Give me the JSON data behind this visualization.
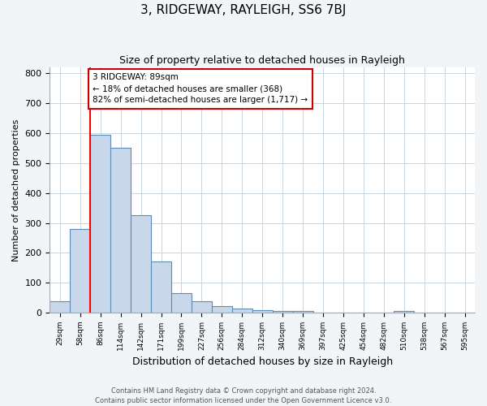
{
  "title": "3, RIDGEWAY, RAYLEIGH, SS6 7BJ",
  "subtitle": "Size of property relative to detached houses in Rayleigh",
  "xlabel": "Distribution of detached houses by size in Rayleigh",
  "ylabel": "Number of detached properties",
  "bin_labels": [
    "29sqm",
    "58sqm",
    "86sqm",
    "114sqm",
    "142sqm",
    "171sqm",
    "199sqm",
    "227sqm",
    "256sqm",
    "284sqm",
    "312sqm",
    "340sqm",
    "369sqm",
    "397sqm",
    "425sqm",
    "454sqm",
    "482sqm",
    "510sqm",
    "538sqm",
    "567sqm",
    "595sqm"
  ],
  "bar_heights": [
    38,
    280,
    595,
    550,
    325,
    170,
    65,
    38,
    22,
    13,
    8,
    5,
    5,
    0,
    0,
    0,
    0,
    5,
    0,
    0,
    0
  ],
  "bar_color": "#c8d8ea",
  "bar_edge_color": "#5b8db8",
  "red_line_index": 2,
  "annotation_line1": "3 RIDGEWAY: 89sqm",
  "annotation_line2": "← 18% of detached houses are smaller (368)",
  "annotation_line3": "82% of semi-detached houses are larger (1,717) →",
  "annotation_box_color": "#ffffff",
  "annotation_box_edge_color": "#cc0000",
  "ylim": [
    0,
    820
  ],
  "yticks": [
    0,
    100,
    200,
    300,
    400,
    500,
    600,
    700,
    800
  ],
  "footer_line1": "Contains HM Land Registry data © Crown copyright and database right 2024.",
  "footer_line2": "Contains public sector information licensed under the Open Government Licence v3.0.",
  "background_color": "#f2f5f8",
  "plot_background_color": "#ffffff",
  "grid_color": "#c8d4de",
  "title_fontsize": 11,
  "subtitle_fontsize": 9,
  "ylabel_fontsize": 8,
  "xlabel_fontsize": 9
}
